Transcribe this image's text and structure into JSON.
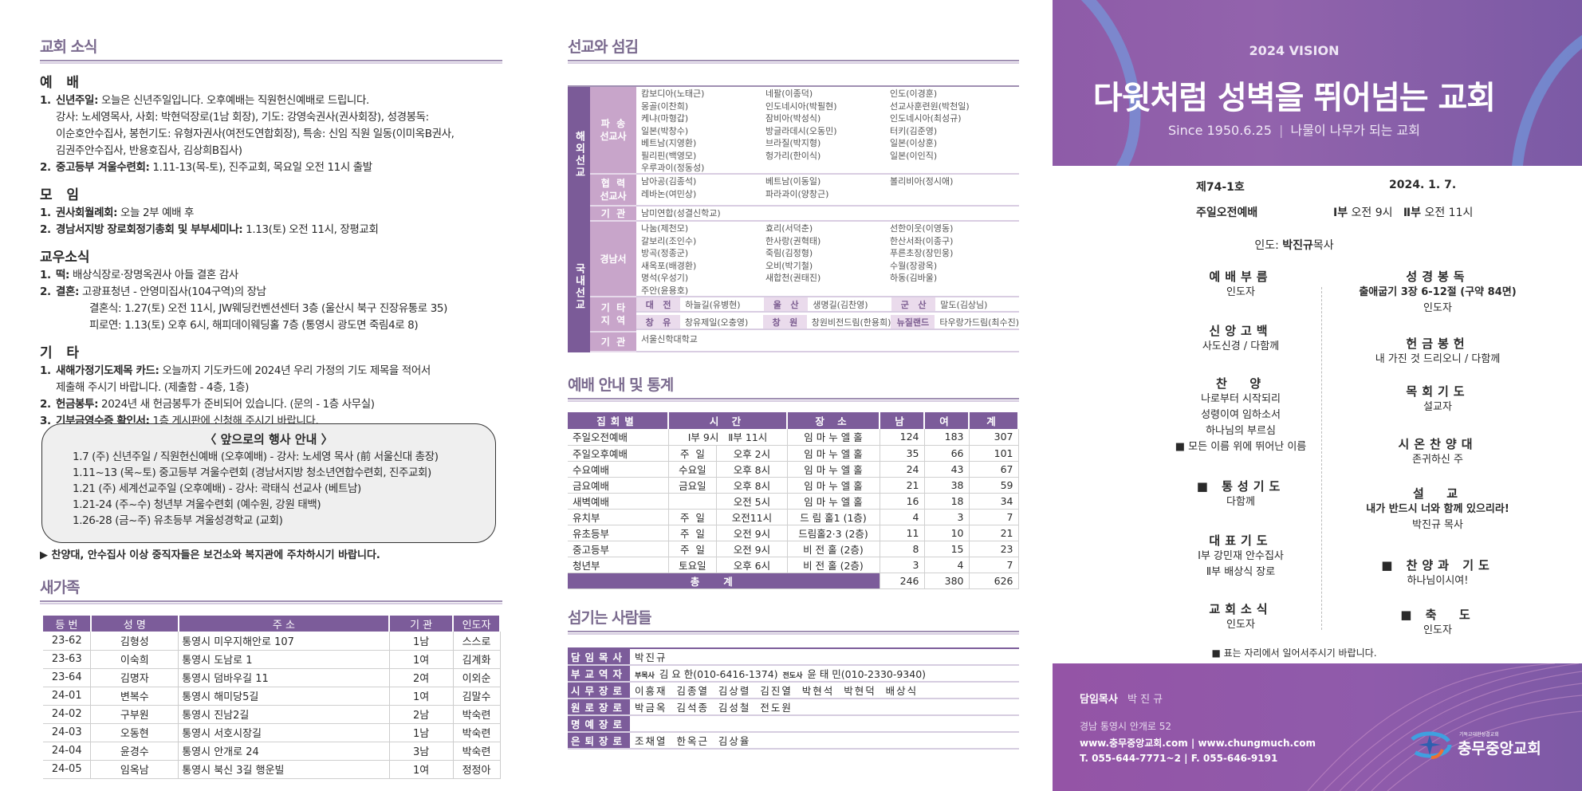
{
  "left": {
    "title": "교회 소식",
    "sections": [
      {
        "heading": "예   배",
        "items": [
          {
            "num": "1.",
            "label": "신년주일:",
            "text": "오늘은 신년주일입니다.  오후예배는 직원헌신예배로 드립니다.",
            "cont": [
              "강사: 노세영목사, 사회: 박현덕장로(1남 회장), 기도: 강영숙권사(권사회장), 성경봉독:",
              "이순호안수집사, 봉헌기도: 유형자권사(여전도연합회장), 특송: 신임 직원 일동(이미옥B권사,",
              "김권주안수집사, 반용호집사, 김상희B집사)"
            ],
            "sub": []
          },
          {
            "num": "2.",
            "label": "중고등부 겨울수련회:",
            "text": "1.11-13(목-토), 진주교회, 목요일 오전 11시 출발",
            "cont": [],
            "sub": []
          }
        ]
      },
      {
        "heading": "모   임",
        "items": [
          {
            "num": "1.",
            "label": "권사회월례회:",
            "text": "오늘 2부 예배 후",
            "cont": [],
            "sub": []
          },
          {
            "num": "2.",
            "label": "경남서지방 장로회정기총회 및 부부세미나:",
            "text": "1.13(토) 오전 11시, 장평교회",
            "cont": [],
            "sub": []
          }
        ]
      },
      {
        "heading": "교우소식",
        "items": [
          {
            "num": "1.",
            "label": "떡:",
            "text": "배상식장로·장명옥권사 아들 결혼 감사",
            "cont": [],
            "sub": []
          },
          {
            "num": "2.",
            "label": "결혼:",
            "text": "고광표청년 - 안영미집사(104구역)의 장남",
            "cont": [],
            "sub": [
              "결혼식: 1.27(토) 오전 11시, JW웨딩컨벤션센터 3층 (울산시 북구 진장유통로 35)",
              "피로연: 1.13(토) 오후 6시, 해피데이웨딩홀 7층 (통영시 광도면 죽림4로 8)"
            ]
          }
        ]
      },
      {
        "heading": "기   타",
        "items": [
          {
            "num": "1.",
            "label": "새해가정기도제목 카드:",
            "text": "오늘까지 기도카드에 2024년 우리 가정의 기도 제목을 적어서",
            "cont": [
              "제출해 주시기 바랍니다. (제출함 - 4층, 1층)"
            ],
            "sub": []
          },
          {
            "num": "2.",
            "label": "헌금봉투:",
            "text": "2024년 새 헌금봉투가 준비되어 있습니다. (문의 - 1층 사무실)",
            "cont": [],
            "sub": []
          },
          {
            "num": "3.",
            "label": "기부금영수증 확인서:",
            "text": "1층 게시판에 신청해 주시기 바랍니다.",
            "cont": [],
            "sub": []
          }
        ]
      }
    ],
    "events": {
      "title": "〈 앞으로의 행사 안내 〉",
      "lines": [
        "1.7 (주) 신년주일 / 직원헌신예배 (오후예배) - 강사: 노세영 목사 (前 서울신대 총장)",
        "1.11~13 (목~토) 중고등부 겨울수련회 (경남서지방 청소년연합수련회, 진주교회)",
        "1.21 (주) 세계선교주일 (오후예배) - 강사: 곽태식 선교사 (베트남)",
        "1.21-24 (주~수) 청년부 겨울수련회 (예수원, 강원 태백)",
        "1.26-28 (금~주) 유초등부 겨울성경학교 (교회)"
      ]
    },
    "notice": "▶ 찬양대, 안수집사 이상 중직자들은 보건소와 복지관에 주차하시기 바랍니다.",
    "new_family": {
      "title": "새가족",
      "headers": [
        "등 번",
        "성 명",
        "주 소",
        "기 관",
        "인도자"
      ],
      "rows": [
        [
          "23-62",
          "김형성",
          "통영시 미우지해안로 107",
          "1남",
          "스스로"
        ],
        [
          "23-63",
          "이숙희",
          "통영시 도남로 1",
          "1여",
          "김계화"
        ],
        [
          "23-64",
          "김명자",
          "통영시 덤바우길 11",
          "2여",
          "이외순"
        ],
        [
          "24-01",
          "변복수",
          "통영시 해미당5길",
          "1여",
          "김말수"
        ],
        [
          "24-02",
          "구부원",
          "통영시 진남2길",
          "2남",
          "박숙련"
        ],
        [
          "24-03",
          "오동현",
          "통영시 서호시장길",
          "1남",
          "박숙련"
        ],
        [
          "24-04",
          "윤경수",
          "통영시 안개로 24",
          "3남",
          "박숙련"
        ],
        [
          "24-05",
          "임옥남",
          "통영시 북신 3길 행운빌",
          "1여",
          "정정아"
        ]
      ]
    }
  },
  "mid": {
    "missions_title": "선교와 섬김",
    "overseas": {
      "label": "해외선교",
      "sent": {
        "label": [
          "파  송",
          "선교사"
        ],
        "cols": [
          [
            "캄보디아(노태근)",
            "몽골(이찬희)",
            "케냐(마형갑)",
            "일본(박창수)",
            "베트남(지영환)",
            "필리핀(백영모)",
            "우루과이(정동성)"
          ],
          [
            "네팔(이종덕)",
            "인도네시아(박필현)",
            "잠비아(박성식)",
            "방글라데시(오동민)",
            "브라질(박지형)",
            "헝가리(한이식)"
          ],
          [
            "인도(이경훈)",
            "선교사훈련원(박천일)",
            "인도네시아(최성규)",
            "터키(김준영)",
            "일본(이상훈)",
            "일본(이인직)"
          ]
        ]
      },
      "coop": {
        "label": [
          "협  력",
          "선교사"
        ],
        "cols": [
          [
            "남아공(김종석)",
            "레바논(여민상)"
          ],
          [
            "베트남(이동일)",
            "파라과이(양창근)"
          ],
          [
            "볼리비아(정시애)"
          ]
        ]
      },
      "org": {
        "label": [
          "기  관"
        ],
        "cols": [
          [
            "남미연합(성결신학교)"
          ]
        ]
      }
    },
    "domestic": {
      "label": "국내선교",
      "gn": {
        "label": [
          "경남서"
        ],
        "cols": [
          [
            "나눔(제천모)",
            "갈보리(조인수)",
            "방곡(정종군)",
            "새옥포(배경환)",
            "명석(우성기)",
            "주안(윤용호)"
          ],
          [
            "효리(서덕춘)",
            "한사랑(권혁태)",
            "죽림(김정형)",
            "오비(박기철)",
            "새합천(권태진)"
          ],
          [
            "선한이웃(이영동)",
            "한산서좌(이종구)",
            "푸른초장(장민웅)",
            "수월(장광옥)",
            "하동(김바울)"
          ]
        ]
      },
      "etc": {
        "label": [
          "기  타",
          "지  역"
        ],
        "rows": [
          [
            "대   전",
            "하늘길(유병현)",
            "울   산",
            "생명길(김찬영)",
            "군   산",
            "말도(김상님)"
          ],
          [
            "창   유",
            "창유제일(오충영)",
            "창   원",
            "창원비전드림(한용희)",
            "뉴질랜드",
            "타우랑가드림(최수진)"
          ]
        ]
      },
      "org": {
        "label": [
          "기  관"
        ],
        "cols": [
          [
            "서울신학대학교"
          ]
        ]
      }
    },
    "stats_title": "예배 안내 및 통계",
    "stats": {
      "headers": [
        "집회별",
        "시 간",
        "장 소",
        "남",
        "여",
        "계"
      ],
      "rows": [
        [
          "주일오전예배",
          "Ⅰ부 9시   Ⅱ부 11시",
          "",
          "임 마 누 엘 홀",
          "124",
          "183",
          "307"
        ],
        [
          "주일오후예배",
          "주  일",
          "오후 2시",
          "임 마 누 엘 홀",
          "35",
          "66",
          "101"
        ],
        [
          "수요예배",
          "수요일",
          "오후 8시",
          "임 마 누 엘 홀",
          "24",
          "43",
          "67"
        ],
        [
          "금요예배",
          "금요일",
          "오후 8시",
          "임 마 누 엘 홀",
          "21",
          "38",
          "59"
        ],
        [
          "새벽예배",
          "",
          "오전 5시",
          "임 마 누 엘 홀",
          "16",
          "18",
          "34"
        ],
        [
          "유치부",
          "주  일",
          "오전11시",
          "드 림 홀1 (1층)",
          "4",
          "3",
          "7"
        ],
        [
          "유초등부",
          "주  일",
          "오전 9시",
          "드림홀2·3 (2층)",
          "11",
          "10",
          "21"
        ],
        [
          "중고등부",
          "주  일",
          "오전 9시",
          "비 전 홀 (2층)",
          "8",
          "15",
          "23"
        ],
        [
          "청년부",
          "토요일",
          "오후 6시",
          "비 전 홀 (2층)",
          "3",
          "4",
          "7"
        ]
      ],
      "total": {
        "label": "총계",
        "male": "246",
        "female": "380",
        "sum": "626"
      }
    },
    "servants_title": "섬기는 사람들",
    "servants": [
      {
        "role": "담임목사",
        "names": "박진규"
      },
      {
        "role": "부교역자",
        "prefix1": "부목사",
        "names": "김 요 한(010-6416-1374)",
        "prefix2": "전도사",
        "names2": "윤 태 민(010-2330-9340)"
      },
      {
        "role": "시무장로",
        "names": "이흥재  김종열  김상렬  김진열  박현석  박현덕  배상식"
      },
      {
        "role": "원로장로",
        "names": "박금옥  김석종  김성철  전도원"
      },
      {
        "role": "명예장로",
        "names": ""
      },
      {
        "role": "은퇴장로",
        "names": "조채열  한옥근  김상율"
      }
    ]
  },
  "cover": {
    "vision": "2024 VISION",
    "slogan": "다윗처럼 성벽을 뛰어넘는 교회",
    "since": "Since 1950.6.25",
    "motto": "나물이 나무가 되는 교회",
    "issue": "제74-1호",
    "date": "2024. 1. 7.",
    "service": "주일오전예배",
    "time1_label": "Ⅰ부",
    "time1": "오전 9시",
    "time2_label": "Ⅱ부",
    "time2": "오전 11시",
    "leader_label": "인도:",
    "leader_name": "박진규",
    "leader_title": "목사",
    "left_items": [
      {
        "title": "예배부름",
        "lines": [
          "인도자"
        ]
      },
      {
        "title": "신앙고백",
        "lines": [
          "사도신경 / 다함께"
        ]
      },
      {
        "title": "찬  양",
        "lines": [
          "나로부터 시작되리",
          "성령이여 임하소서",
          "하나님의 부르심",
          "■ 모든 이름 위에 뛰어난 이름"
        ]
      },
      {
        "title": "■ 통성기도",
        "lines": [
          "다함께"
        ]
      },
      {
        "title": "대표기도",
        "lines": [
          "Ⅰ부 강민재 안수집사",
          "Ⅱ부 배상식 장로"
        ]
      },
      {
        "title": "교회소식",
        "lines": [
          "인도자"
        ]
      }
    ],
    "right_items": [
      {
        "title": "성경봉독",
        "lines": [
          "출애굽기 3장 6-12절 (구약 84면)",
          "인도자"
        ]
      },
      {
        "title": "헌금봉헌",
        "lines": [
          "내 가진 것 드리오니 / 다함께"
        ]
      },
      {
        "title": "목회기도",
        "lines": [
          "설교자"
        ]
      },
      {
        "title": "시온찬양대",
        "lines": [
          "존귀하신 주"
        ]
      },
      {
        "title": "설  교",
        "lines": [
          "내가 반드시 너와 함께 있으리라!",
          "박진규 목사"
        ]
      },
      {
        "title": "■ 찬양과 기도",
        "lines": [
          "하나님이시여!"
        ]
      },
      {
        "title": "■ 축  도",
        "lines": [
          "인도자"
        ]
      }
    ],
    "stand_note": "■ 표는 자리에서 일어서주시기 바랍니다.",
    "footer": {
      "pastor_label": "담임목사",
      "pastor": "박 진 규",
      "address": "경남 통영시 안개로 52",
      "web": "www.충무중앙교회.com | www.chungmuch.com",
      "phone": "T. 055-644-7771~2 | F. 055-646-9191",
      "logo_small": "기독교대한성결교회",
      "logo_name": "충무중앙교회"
    }
  },
  "colors": {
    "purple": "#7c5c9a",
    "light_purple": "#c8a5ca",
    "header_purple": "#8e5ba8"
  }
}
